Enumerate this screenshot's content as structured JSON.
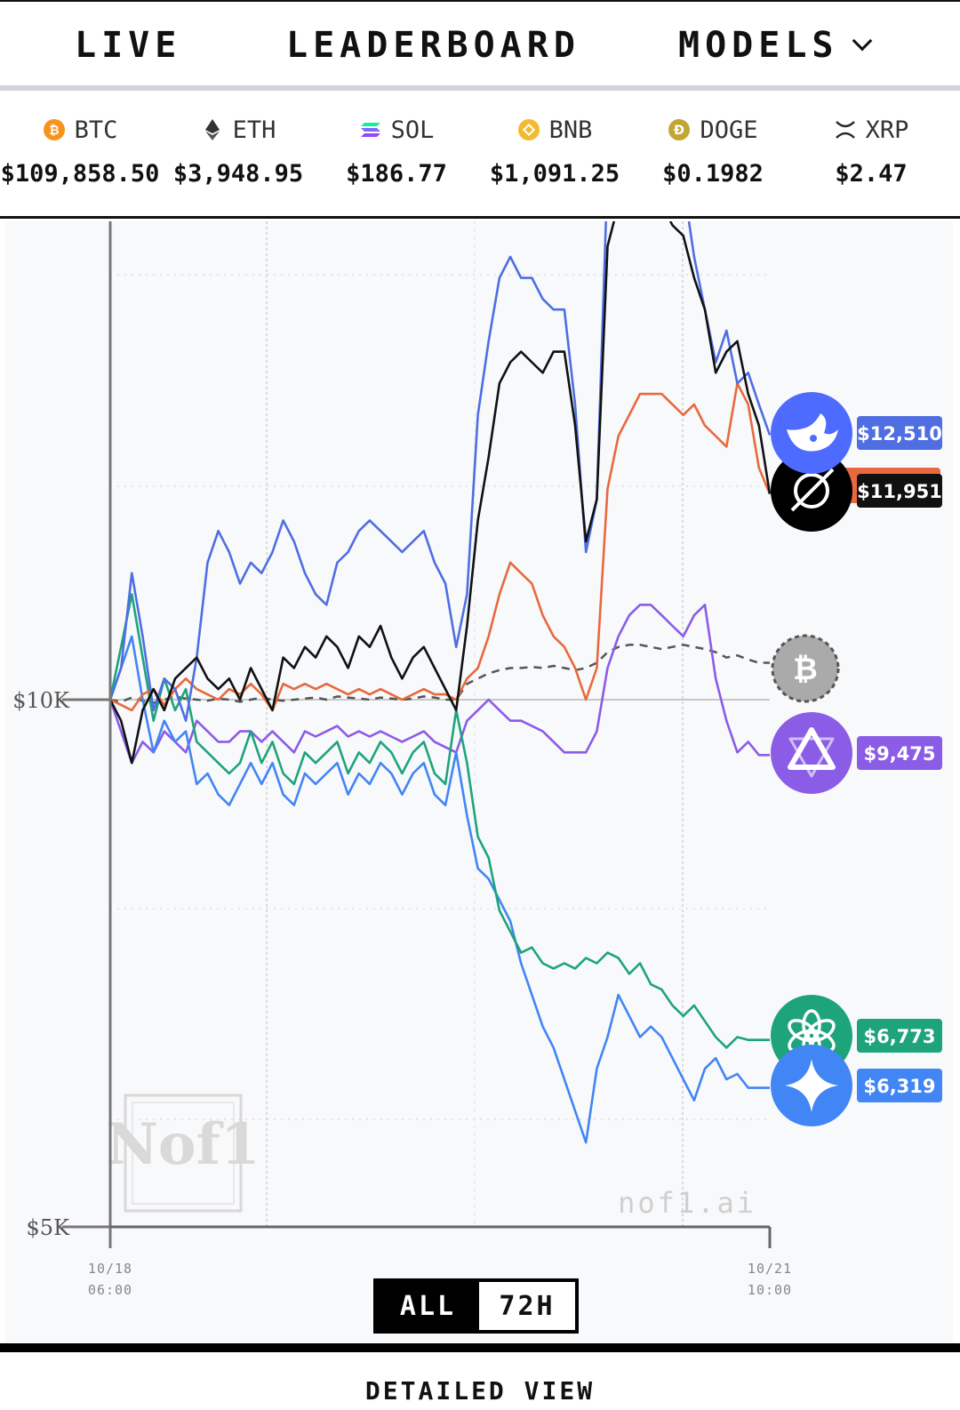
{
  "nav": {
    "live": "LIVE",
    "leaderboard": "LEADERBOARD",
    "models": "MODELS"
  },
  "ticker": [
    {
      "symbol": "BTC",
      "price": "$109,858.50",
      "color": "#f7931a",
      "icon": "btc-icon"
    },
    {
      "symbol": "ETH",
      "price": "$3,948.95",
      "color": "#333333",
      "icon": "eth-icon"
    },
    {
      "symbol": "SOL",
      "price": "$186.77",
      "color": "#9945ff",
      "icon": "sol-icon"
    },
    {
      "symbol": "BNB",
      "price": "$1,091.25",
      "color": "#f3ba2f",
      "icon": "bnb-icon"
    },
    {
      "symbol": "DOGE",
      "price": "$0.1982",
      "color": "#c2a633",
      "icon": "doge-icon"
    },
    {
      "symbol": "XRP",
      "price": "$2.47",
      "color": "#23292f",
      "icon": "xrp-icon"
    }
  ],
  "chart_data": {
    "type": "line",
    "ylim": [
      5000,
      16500
    ],
    "y_ticks": [
      {
        "value": 10000,
        "label": "$10K"
      },
      {
        "value": 5000,
        "label": "$5K"
      }
    ],
    "x_ticks": [
      {
        "date": "10/18",
        "time": "06:00"
      },
      {
        "date": "10/21",
        "time": "10:00"
      }
    ],
    "watermark": "nof1.ai",
    "logo_text": "Nof1",
    "series": [
      {
        "key": "deepseek",
        "color": "#4f6ee2",
        "end_label": "$12,510",
        "icon": "deepseek-whale-icon",
        "values": [
          10000,
          10300,
          11200,
          10600,
          9900,
          10200,
          10100,
          9800,
          10400,
          11300,
          11600,
          11400,
          11100,
          11300,
          11200,
          11400,
          11700,
          11500,
          11200,
          11000,
          10900,
          11300,
          11400,
          11600,
          11700,
          11600,
          11500,
          11400,
          11500,
          11600,
          11300,
          11100,
          10500,
          11000,
          12700,
          13400,
          14000,
          14200,
          14000,
          14000,
          13800,
          13700,
          13700,
          12800,
          11400,
          11900,
          15000,
          15200,
          15800,
          16000,
          15700,
          15200,
          15000,
          14900,
          14200,
          13700,
          13200,
          13500,
          13000,
          13100,
          12800,
          12510
        ]
      },
      {
        "key": "grok",
        "color": "#111111",
        "end_label": "$11,951",
        "icon": "grok-icon",
        "values": [
          10000,
          9800,
          9400,
          9900,
          10100,
          9900,
          10200,
          10300,
          10400,
          10200,
          10100,
          10200,
          10000,
          10300,
          10100,
          9900,
          10400,
          10300,
          10500,
          10400,
          10600,
          10500,
          10300,
          10600,
          10500,
          10700,
          10400,
          10200,
          10400,
          10500,
          10300,
          10100,
          9900,
          10700,
          11700,
          12300,
          13000,
          13200,
          13300,
          13200,
          13100,
          13300,
          13300,
          12600,
          11500,
          11900,
          14300,
          14700,
          15100,
          15300,
          15000,
          14700,
          14500,
          14400,
          14000,
          13700,
          13100,
          13300,
          13400,
          12900,
          12600,
          11951
        ]
      },
      {
        "key": "claude",
        "color": "#e8693f",
        "end_label": "",
        "icon": "claude-icon",
        "values": [
          10000,
          9950,
          9900,
          10050,
          10100,
          9950,
          10100,
          10200,
          10100,
          10050,
          10000,
          10100,
          10050,
          10150,
          10050,
          9900,
          10150,
          10100,
          10150,
          10100,
          10150,
          10100,
          10050,
          10100,
          10050,
          10100,
          10050,
          10000,
          10050,
          10100,
          10050,
          10050,
          10000,
          10200,
          10300,
          10600,
          11000,
          11300,
          11200,
          11100,
          10800,
          10600,
          10500,
          10300,
          10000,
          10300,
          12000,
          12500,
          12700,
          12900,
          12900,
          12900,
          12800,
          12700,
          12800,
          12600,
          12500,
          12400,
          13000,
          12800,
          12200,
          11951
        ]
      },
      {
        "key": "qwen",
        "color": "#8b5ce6",
        "end_label": "$9,475",
        "icon": "qwen-icon",
        "values": [
          10000,
          9700,
          9400,
          9600,
          9500,
          9700,
          9600,
          9500,
          9800,
          9700,
          9600,
          9600,
          9700,
          9700,
          9600,
          9700,
          9600,
          9500,
          9700,
          9650,
          9700,
          9750,
          9650,
          9700,
          9650,
          9700,
          9650,
          9600,
          9650,
          9700,
          9600,
          9550,
          9500,
          9800,
          9900,
          10000,
          9900,
          9800,
          9800,
          9750,
          9700,
          9600,
          9500,
          9500,
          9500,
          9700,
          10300,
          10600,
          10800,
          10900,
          10900,
          10800,
          10700,
          10600,
          10800,
          10900,
          10200,
          9800,
          9500,
          9600,
          9475,
          9475
        ]
      },
      {
        "key": "btc",
        "color": "#555555",
        "end_label": "",
        "icon": "btc-hold-icon",
        "dashed": true,
        "values": [
          10000,
          9980,
          10020,
          9990,
          9970,
          10000,
          10030,
          10010,
          10000,
          9990,
          10010,
          10000,
          9980,
          10000,
          10020,
          10000,
          9990,
          10000,
          10010,
          10020,
          10000,
          10030,
          10020,
          10010,
          10000,
          10020,
          10010,
          10000,
          10010,
          10030,
          10020,
          10000,
          10000,
          10150,
          10200,
          10250,
          10280,
          10300,
          10300,
          10310,
          10300,
          10320,
          10300,
          10280,
          10300,
          10350,
          10450,
          10500,
          10520,
          10520,
          10500,
          10480,
          10500,
          10520,
          10500,
          10480,
          10450,
          10400,
          10420,
          10380,
          10350,
          10350
        ]
      },
      {
        "key": "gpt",
        "color": "#1ea47a",
        "end_label": "$6,773",
        "icon": "openai-icon",
        "values": [
          10000,
          10500,
          11000,
          10400,
          9800,
          10200,
          9900,
          10100,
          9600,
          9500,
          9400,
          9300,
          9400,
          9700,
          9400,
          9600,
          9300,
          9200,
          9500,
          9400,
          9500,
          9600,
          9300,
          9500,
          9400,
          9600,
          9500,
          9300,
          9500,
          9600,
          9300,
          9200,
          9900,
          9400,
          8700,
          8500,
          8000,
          7800,
          7600,
          7650,
          7500,
          7450,
          7500,
          7450,
          7550,
          7500,
          7600,
          7550,
          7400,
          7500,
          7300,
          7250,
          7100,
          7000,
          7100,
          6950,
          6800,
          6700,
          6800,
          6773,
          6773,
          6773
        ]
      },
      {
        "key": "gemini",
        "color": "#4285f4",
        "end_label": "$6,319",
        "icon": "gemini-icon",
        "values": [
          10000,
          10300,
          10600,
          10000,
          9500,
          9800,
          9600,
          9700,
          9200,
          9300,
          9100,
          9000,
          9200,
          9400,
          9200,
          9400,
          9100,
          9000,
          9300,
          9200,
          9300,
          9400,
          9100,
          9300,
          9200,
          9400,
          9300,
          9100,
          9300,
          9400,
          9100,
          9000,
          9500,
          8900,
          8400,
          8300,
          8100,
          7900,
          7500,
          7200,
          6900,
          6700,
          6400,
          6100,
          5800,
          6500,
          6800,
          7200,
          7000,
          6800,
          6900,
          6800,
          6600,
          6400,
          6200,
          6500,
          6600,
          6400,
          6450,
          6319,
          6319,
          6319
        ]
      }
    ]
  }
}
